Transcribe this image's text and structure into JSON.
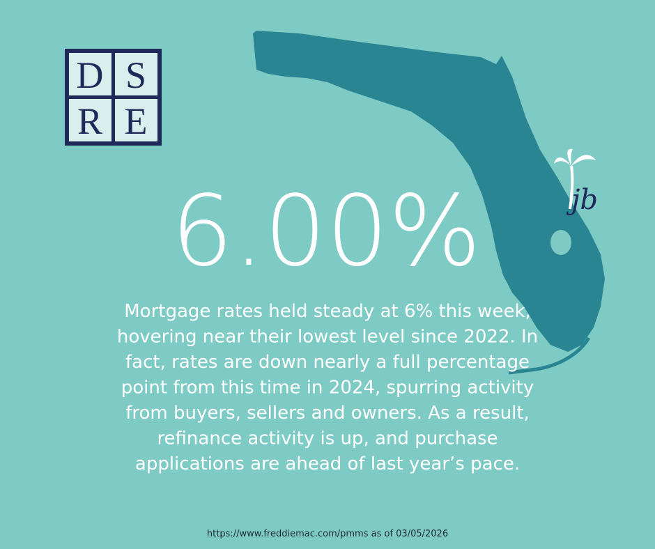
{
  "logo": {
    "letters": [
      "D",
      "S",
      "R",
      "E"
    ]
  },
  "signature": "jb",
  "headline": "6.00%",
  "body": {
    "lines": [
      "Mortgage rates held steady at 6% this week,",
      "hovering near their lowest level since 2022. In",
      "fact, rates are down nearly a full percentage",
      "point from this time in 2024, spurring activity",
      "from buyers, sellers and owners. As a result,",
      "refinance activity is up, and purchase",
      "applications are ahead of last year’s pace."
    ]
  },
  "source": "https://www.freddiemac.com/pmms as of 03/05/2026"
}
